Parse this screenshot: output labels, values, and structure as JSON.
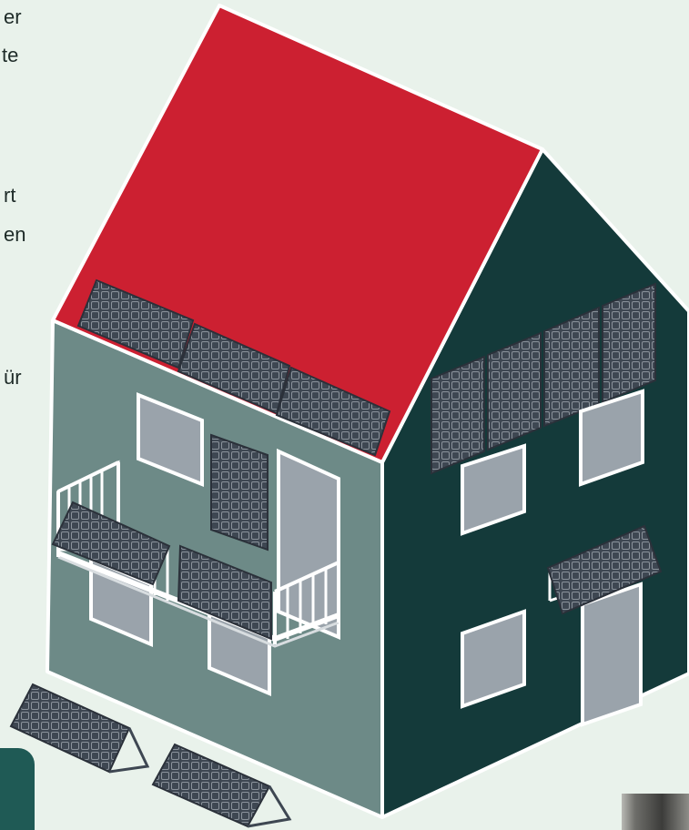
{
  "text_fragments": [
    "er",
    "te",
    "rt",
    "en",
    "ür"
  ],
  "colors": {
    "background": "#e9f2eb",
    "roof": "#cc2031",
    "front_wall": "#6d8a87",
    "side_wall": "#143a3a",
    "window": "#9aa3ab",
    "panel": "#3e4752",
    "accent_tab": "#1f5a55"
  }
}
